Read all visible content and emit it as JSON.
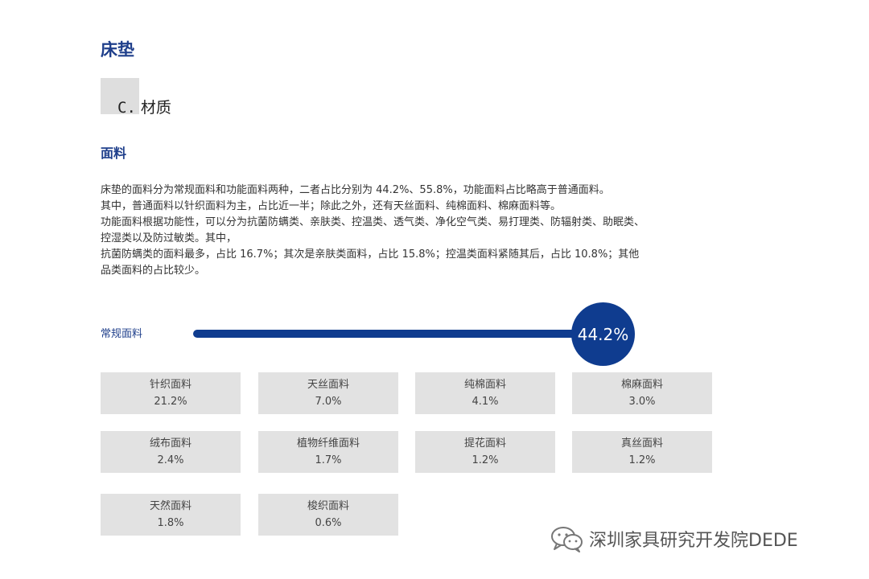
{
  "header": {
    "title": "床垫"
  },
  "section": {
    "letter": "C.",
    "title": "材质"
  },
  "subsection": {
    "title": "面料"
  },
  "paragraph": {
    "lines": [
      "床垫的面料分为常规面料和功能面料两种，二者占比分别为 44.2%、55.8%，功能面料占比略高于普通面料。",
      "其中，普通面料以针织面料为主，占比近一半；除此之外，还有天丝面料、纯棉面料、棉麻面料等。",
      "功能面料根据功能性，可以分为抗菌防螨类、亲肤类、控温类、透气类、净化空气类、易打理类、防辐射类、助眠类、",
      "控湿类以及防过敏类。其中，",
      "抗菌防螨类的面料最多，占比 16.7%；其次是亲肤类面料，占比 15.8%；控温类面料紧随其后，占比 10.8%；其他",
      "品类面料的占比较少。"
    ]
  },
  "progress": {
    "label": "常规面料",
    "value_text": "44.2%",
    "value": 44.2,
    "color": "#0f3c8f"
  },
  "materials": [
    {
      "name": "针织面料",
      "value": "21.2%"
    },
    {
      "name": "天丝面料",
      "value": "7.0%"
    },
    {
      "name": "纯棉面料",
      "value": "4.1%"
    },
    {
      "name": "棉麻面料",
      "value": "3.0%"
    },
    {
      "name": "绒布面料",
      "value": "2.4%"
    },
    {
      "name": "植物纤维面料",
      "value": "1.7%"
    },
    {
      "name": "提花面料",
      "value": "1.2%"
    },
    {
      "name": "真丝面料",
      "value": "1.2%"
    },
    {
      "name": "天然面料",
      "value": "1.8%"
    },
    {
      "name": "梭织面料",
      "value": "0.6%"
    }
  ],
  "watermark": {
    "text": "深圳家具研究开发院DEDE",
    "icon": "wechat-icon"
  }
}
